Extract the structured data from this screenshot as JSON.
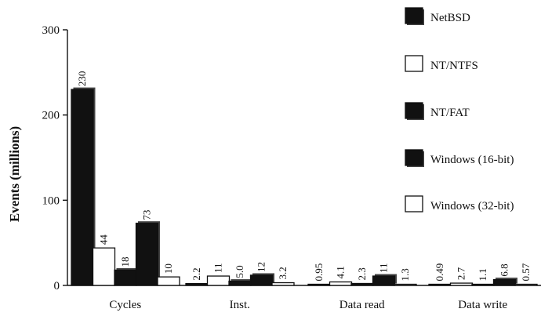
{
  "chart_data": {
    "type": "bar",
    "title": "",
    "xlabel": "",
    "ylabel": "Events (millions)",
    "ylim": [
      0,
      300
    ],
    "yticks": [
      0,
      100,
      200,
      300
    ],
    "grid": false,
    "legend_position": "right",
    "categories": [
      "Cycles",
      "Inst.",
      "Data read",
      "Data write"
    ],
    "series": [
      {
        "name": "NetBSD",
        "fill": "black",
        "values": [
          230,
          2.2,
          0.95,
          0.49
        ],
        "labels": [
          "230",
          "2.2",
          "0.95",
          "0.49"
        ]
      },
      {
        "name": "NT/NTFS",
        "fill": "white",
        "values": [
          44,
          11,
          4.1,
          2.7
        ],
        "labels": [
          "44",
          "11",
          "4.1",
          "2.7"
        ]
      },
      {
        "name": "NT/FAT",
        "fill": "black",
        "values": [
          18,
          5.0,
          2.3,
          1.1
        ],
        "labels": [
          "18",
          "5.0",
          "2.3",
          "1.1"
        ]
      },
      {
        "name": "Windows (16-bit)",
        "fill": "black",
        "values": [
          73,
          12,
          11,
          6.8
        ],
        "labels": [
          "73",
          "12",
          "11",
          "6.8"
        ]
      },
      {
        "name": "Windows (32-bit)",
        "fill": "white",
        "values": [
          10,
          3.2,
          1.3,
          0.57
        ],
        "labels": [
          "10",
          "3.2",
          "1.3",
          "0.57"
        ]
      }
    ]
  },
  "colors": {
    "dark": "#111111",
    "light": "#ffffff"
  }
}
